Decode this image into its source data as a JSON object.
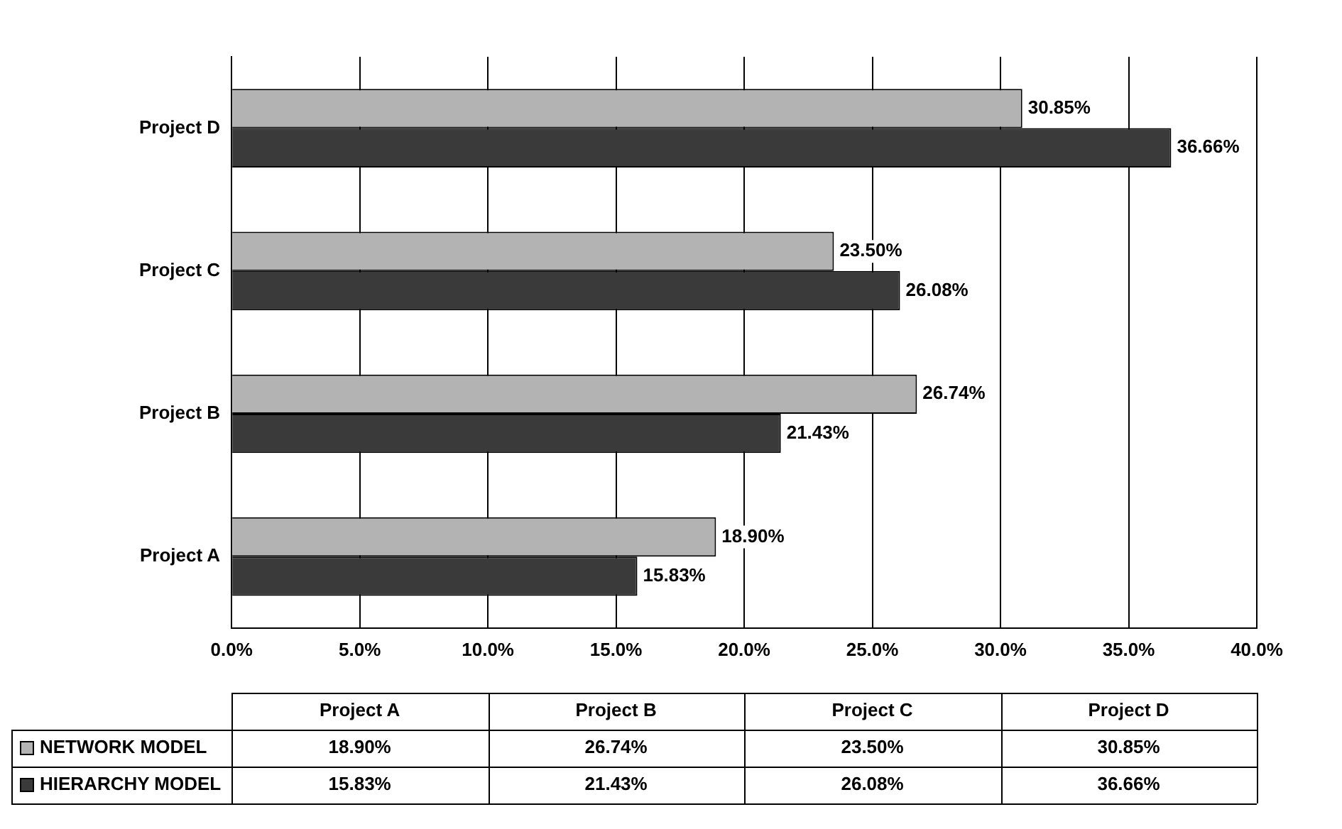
{
  "chart_data": {
    "type": "bar",
    "orientation": "horizontal",
    "categories": [
      "Project D",
      "Project C",
      "Project B",
      "Project A"
    ],
    "series": [
      {
        "name": "NETWORK MODEL",
        "color": "#b3b3b3",
        "values": [
          30.85,
          23.5,
          26.74,
          18.9
        ],
        "value_labels": [
          "30.85%",
          "23.50%",
          "26.74%",
          "18.90%"
        ]
      },
      {
        "name": "HIERARCHY MODEL",
        "color": "#3a3a3a",
        "values": [
          36.66,
          26.08,
          21.43,
          15.83
        ],
        "value_labels": [
          "36.66%",
          "26.08%",
          "21.43%",
          "15.83%"
        ]
      }
    ],
    "xlim": [
      0,
      40
    ],
    "xticks": [
      {
        "value": 0,
        "label": "0.0%"
      },
      {
        "value": 5,
        "label": "5.0%"
      },
      {
        "value": 10,
        "label": "10.0%"
      },
      {
        "value": 15,
        "label": "15.0%"
      },
      {
        "value": 20,
        "label": "20.0%"
      },
      {
        "value": 25,
        "label": "25.0%"
      },
      {
        "value": 30,
        "label": "30.0%"
      },
      {
        "value": 35,
        "label": "35.0%"
      },
      {
        "value": 40,
        "label": "40.0%"
      }
    ],
    "grid": "x",
    "legend": "bottom"
  }
}
